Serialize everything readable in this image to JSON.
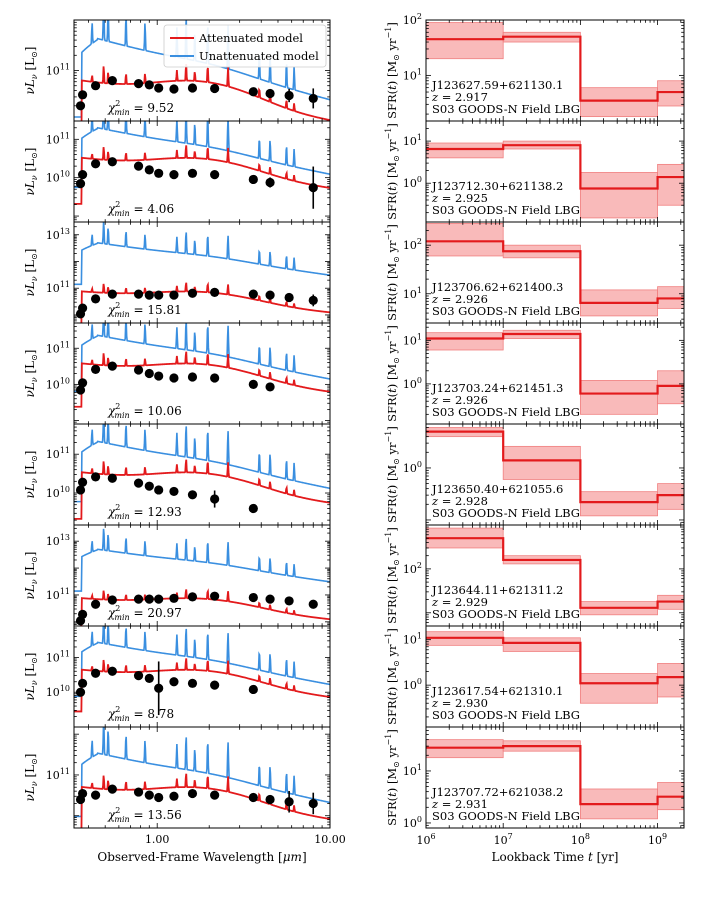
{
  "figure": {
    "left_x_label_pre": "Observed-Frame Wavelength [",
    "left_x_label_unit": "μm",
    "left_x_label_post": "]",
    "right_x_label_pre": "Lookback Time ",
    "right_x_label_var": "t",
    "right_x_label_post": " [yr]"
  },
  "left_axis": {
    "xlim": [
      0.33,
      10.0
    ],
    "xscale": "log",
    "xticks": [
      {
        "v": 1.0,
        "label": "1.00"
      },
      {
        "v": 10.0,
        "label": "10.00"
      }
    ],
    "ylabel_pre": "ν",
    "ylabel_var": "L",
    "ylabel_sub": "ν",
    "ylabel_unit": " [L",
    "ylabel_unit_sub": "⊙",
    "ylabel_end": "]",
    "chi_label_pre": "χ",
    "chi_sup": "2",
    "chi_sub": "min",
    "chi_eq": " = "
  },
  "right_axis": {
    "xlim": [
      1000000.0,
      2200000000.0
    ],
    "xscale": "log",
    "xticks": [
      {
        "v": 1000000.0,
        "exp": "6"
      },
      {
        "v": 10000000.0,
        "exp": "7"
      },
      {
        "v": 100000000.0,
        "exp": "8"
      },
      {
        "v": 1000000000.0,
        "exp": "9"
      }
    ],
    "tick_base": "10",
    "ylabel_pre": "SFR(",
    "ylabel_var": "t",
    "ylabel_mid": ") [M",
    "ylabel_sub": "⊙",
    "ylabel_unit": " yr",
    "ylabel_sup": "−1",
    "ylabel_end": "]",
    "bin_edges": [
      1000000.0,
      10000000.0,
      100000000.0,
      1000000000.0,
      2200000000.0
    ]
  },
  "legend": {
    "attenuated": "Attenuated model",
    "unattenuated": "Unattenuated model"
  },
  "colors": {
    "attenuated": "#e31a1c",
    "unattenuated": "#3a8fe0",
    "band_fill": "#f7a3a3",
    "band_edge": "#f08080",
    "points": "#000000"
  },
  "chart_data": [
    {
      "type": "line",
      "title": "J123627.59+621130.1",
      "chi2": "9.52",
      "sed_ylim": [
        10000000000.0,
        1000000000000.0
      ],
      "sed_yticks": [
        {
          "v": 100000000000.0,
          "exp": "11"
        }
      ],
      "atten_amp": 50000000000.0,
      "unatten_amp": 300000000000.0,
      "phot": [
        [
          0.36,
          20000000000.0,
          0.0
        ],
        [
          0.37,
          33000000000.0,
          0.0
        ],
        [
          0.44,
          50000000000.0,
          0.0
        ],
        [
          0.55,
          63000000000.0,
          0.0
        ],
        [
          0.78,
          55000000000.0,
          0.0
        ],
        [
          0.9,
          52000000000.0,
          0.0
        ],
        [
          1.02,
          45000000000.0,
          0.0
        ],
        [
          1.25,
          43000000000.0,
          0.0
        ],
        [
          1.6,
          45000000000.0,
          0.0
        ],
        [
          2.15,
          44000000000.0,
          0.0
        ],
        [
          3.6,
          38000000000.0,
          0.0
        ],
        [
          4.5,
          35000000000.0,
          0.0
        ],
        [
          5.8,
          32000000000.0,
          0.06
        ],
        [
          8.0,
          28000000000.0,
          0.09
        ]
      ],
      "name": "J123627.59+621130.1",
      "z_label": "z",
      "z_eq": " = ",
      "z": "2.917",
      "field": "S03 GOODS-N Field LBG",
      "sfr_ylim": [
        1.5,
        100
      ],
      "sfr_yticks": [
        {
          "v": 10,
          "exp": "1"
        },
        {
          "v": 100,
          "exp": "2"
        }
      ],
      "sfr": [
        45,
        50,
        3.5,
        5.0
      ],
      "sfr_lo": [
        20,
        40,
        1.8,
        2.8
      ],
      "sfr_hi": [
        90,
        60,
        6.0,
        8.0
      ]
    },
    {
      "type": "line",
      "title": "J123712.30+621138.2",
      "chi2": "4.06",
      "sed_ylim": [
        700000000.0,
        300000000000.0
      ],
      "sed_yticks": [
        {
          "v": 10000000000.0,
          "exp": "10"
        },
        {
          "v": 100000000000.0,
          "exp": "11"
        }
      ],
      "atten_amp": 26000000000.0,
      "unatten_amp": 140000000000.0,
      "phot": [
        [
          0.36,
          7000000000.0,
          0.0
        ],
        [
          0.37,
          12000000000.0,
          0.0
        ],
        [
          0.44,
          23000000000.0,
          0.0
        ],
        [
          0.55,
          26000000000.0,
          0.0
        ],
        [
          0.78,
          20000000000.0,
          0.0
        ],
        [
          0.9,
          16000000000.0,
          0.0
        ],
        [
          1.02,
          13000000000.0,
          0.0
        ],
        [
          1.25,
          12000000000.0,
          0.0
        ],
        [
          1.6,
          13000000000.0,
          0.0
        ],
        [
          2.15,
          12000000000.0,
          0.0
        ],
        [
          3.6,
          9000000000.0,
          0.0
        ],
        [
          4.5,
          7500000000.0,
          0.06
        ],
        [
          8.0,
          5500000000.0,
          0.25
        ]
      ],
      "name": "J123712.30+621138.2",
      "z_label": "z",
      "z_eq": " = ",
      "z": "2.925",
      "field": "S03 GOODS-N Field LBG",
      "sfr_ylim": [
        0.12,
        30
      ],
      "sfr_yticks": [
        {
          "v": 1,
          "exp": "0"
        },
        {
          "v": 10,
          "exp": "1"
        }
      ],
      "sfr": [
        6.5,
        8.0,
        0.75,
        1.4
      ],
      "sfr_lo": [
        4.0,
        6.5,
        0.15,
        0.3
      ],
      "sfr_hi": [
        9.0,
        10.0,
        1.8,
        2.8
      ]
    },
    {
      "type": "line",
      "title": "J123706.62+621400.3",
      "chi2": "15.81",
      "sed_ylim": [
        5000000000.0,
        30000000000000.0
      ],
      "sed_yticks": [
        {
          "v": 100000000000.0,
          "exp": "11"
        },
        {
          "v": 10000000000000.0,
          "exp": "13"
        }
      ],
      "atten_amp": 60000000000.0,
      "unatten_amp": 3500000000000.0,
      "phot": [
        [
          0.36,
          11000000000.0,
          0.0
        ],
        [
          0.37,
          18000000000.0,
          0.0
        ],
        [
          0.44,
          40000000000.0,
          0.0
        ],
        [
          0.55,
          60000000000.0,
          0.0
        ],
        [
          0.78,
          60000000000.0,
          0.0
        ],
        [
          0.9,
          55000000000.0,
          0.0
        ],
        [
          1.02,
          55000000000.0,
          0.0
        ],
        [
          1.25,
          55000000000.0,
          0.0
        ],
        [
          1.6,
          65000000000.0,
          0.0
        ],
        [
          2.15,
          70000000000.0,
          0.0
        ],
        [
          3.6,
          60000000000.0,
          0.0
        ],
        [
          4.5,
          55000000000.0,
          0.0
        ],
        [
          5.8,
          45000000000.0,
          0.0
        ],
        [
          8.0,
          35000000000.0,
          0.1
        ]
      ],
      "name": "J123706.62+621400.3",
      "z_label": "z",
      "z_eq": " = ",
      "z": "2.926",
      "field": "S03 GOODS-N Field LBG",
      "sfr_ylim": [
        2.5,
        300
      ],
      "sfr_yticks": [
        {
          "v": 10,
          "exp": "1"
        },
        {
          "v": 100,
          "exp": "2"
        }
      ],
      "sfr": [
        120,
        75,
        6.5,
        8.0
      ],
      "sfr_lo": [
        60,
        55,
        3.5,
        5.0
      ],
      "sfr_hi": [
        280,
        100,
        12,
        14
      ]
    },
    {
      "type": "line",
      "title": "J123703.24+621451.3",
      "chi2": "10.06",
      "sed_ylim": [
        800000000.0,
        500000000000.0
      ],
      "sed_yticks": [
        {
          "v": 10000000000.0,
          "exp": "10"
        },
        {
          "v": 100000000000.0,
          "exp": "11"
        }
      ],
      "atten_amp": 30000000000.0,
      "unatten_amp": 160000000000.0,
      "phot": [
        [
          0.36,
          7000000000.0,
          0.0
        ],
        [
          0.37,
          11000000000.0,
          0.0
        ],
        [
          0.44,
          26000000000.0,
          0.0
        ],
        [
          0.55,
          32000000000.0,
          0.0
        ],
        [
          0.78,
          25000000000.0,
          0.0
        ],
        [
          0.9,
          20000000000.0,
          0.0
        ],
        [
          1.02,
          17000000000.0,
          0.0
        ],
        [
          1.25,
          15000000000.0,
          0.0
        ],
        [
          1.6,
          16000000000.0,
          0.0
        ],
        [
          2.15,
          15000000000.0,
          0.0
        ],
        [
          3.6,
          10000000000.0,
          0.0
        ],
        [
          4.5,
          8500000000.0,
          0.0
        ]
      ],
      "name": "J123703.24+621451.3",
      "z_label": "z",
      "z_eq": " = ",
      "z": "2.926",
      "field": "S03 GOODS-N Field LBG",
      "sfr_ylim": [
        0.12,
        25
      ],
      "sfr_yticks": [
        {
          "v": 1,
          "exp": "0"
        },
        {
          "v": 10,
          "exp": "1"
        }
      ],
      "sfr": [
        11,
        14,
        0.6,
        0.9
      ],
      "sfr_lo": [
        6.0,
        11.0,
        0.2,
        0.35
      ],
      "sfr_hi": [
        15,
        17,
        1.2,
        2.0
      ]
    },
    {
      "type": "line",
      "title": "J123650.40+621055.6",
      "chi2": "12.93",
      "sed_ylim": [
        1500000000.0,
        600000000000.0
      ],
      "sed_yticks": [
        {
          "v": 10000000000.0,
          "exp": "10"
        },
        {
          "v": 100000000000.0,
          "exp": "11"
        }
      ],
      "atten_amp": 27000000000.0,
      "unatten_amp": 150000000000.0,
      "phot": [
        [
          0.36,
          12000000000.0,
          0.0
        ],
        [
          0.37,
          19000000000.0,
          0.0
        ],
        [
          0.44,
          26000000000.0,
          0.0
        ],
        [
          0.55,
          24000000000.0,
          0.0
        ],
        [
          0.78,
          18000000000.0,
          0.0
        ],
        [
          0.9,
          15000000000.0,
          0.0
        ],
        [
          1.02,
          12000000000.0,
          0.0
        ],
        [
          1.25,
          11000000000.0,
          0.0
        ],
        [
          1.6,
          9000000000.0,
          0.0
        ],
        [
          2.15,
          7000000000.0,
          0.1
        ],
        [
          3.6,
          4000000000.0,
          0.0
        ]
      ],
      "name": "J123650.40+621055.6",
      "z_label": "z",
      "z_eq": " = ",
      "z": "2.928",
      "field": "S03 GOODS-N Field LBG",
      "sfr_ylim": [
        0.08,
        7
      ],
      "sfr_yticks": [
        {
          "v": 1,
          "exp": "0"
        }
      ],
      "sfr": [
        5.0,
        1.4,
        0.22,
        0.3
      ],
      "sfr_lo": [
        4.0,
        0.6,
        0.12,
        0.16
      ],
      "sfr_hi": [
        6.0,
        2.6,
        0.35,
        0.5
      ]
    },
    {
      "type": "line",
      "title": "J123644.11+621311.2",
      "chi2": "20.97",
      "sed_ylim": [
        7000000000.0,
        40000000000000.0
      ],
      "sed_yticks": [
        {
          "v": 100000000000.0,
          "exp": "11"
        },
        {
          "v": 10000000000000.0,
          "exp": "13"
        }
      ],
      "atten_amp": 60000000000.0,
      "unatten_amp": 3500000000000.0,
      "phot": [
        [
          0.36,
          11000000000.0,
          0.0
        ],
        [
          0.37,
          19000000000.0,
          0.0
        ],
        [
          0.44,
          45000000000.0,
          0.0
        ],
        [
          0.55,
          65000000000.0,
          0.0
        ],
        [
          0.78,
          70000000000.0,
          0.0
        ],
        [
          0.9,
          70000000000.0,
          0.0
        ],
        [
          1.02,
          70000000000.0,
          0.0
        ],
        [
          1.25,
          75000000000.0,
          0.0
        ],
        [
          1.6,
          85000000000.0,
          0.0
        ],
        [
          2.15,
          90000000000.0,
          0.0
        ],
        [
          3.6,
          80000000000.0,
          0.0
        ],
        [
          4.5,
          70000000000.0,
          0.0
        ],
        [
          5.8,
          60000000000.0,
          0.0
        ],
        [
          8.0,
          45000000000.0,
          0.0
        ]
      ],
      "name": "J123644.11+621311.2",
      "z_label": "z",
      "z_eq": " = ",
      "z": "2.929",
      "field": "S03 GOODS-N Field LBG",
      "sfr_ylim": [
        5,
        1000
      ],
      "sfr_yticks": [
        {
          "v": 100,
          "exp": "2"
        }
      ],
      "sfr": [
        500,
        160,
        13,
        18
      ],
      "sfr_lo": [
        300,
        130,
        9,
        12
      ],
      "sfr_hi": [
        850,
        200,
        18,
        25
      ]
    },
    {
      "type": "line",
      "title": "J123617.54+621310.1",
      "chi2": "8.78",
      "sed_ylim": [
        1000000000.0,
        800000000000.0
      ],
      "sed_yticks": [
        {
          "v": 10000000000.0,
          "exp": "10"
        },
        {
          "v": 100000000000.0,
          "exp": "11"
        }
      ],
      "atten_amp": 35000000000.0,
      "unatten_amp": 190000000000.0,
      "phot": [
        [
          0.36,
          10000000000.0,
          0.0
        ],
        [
          0.37,
          18000000000.0,
          0.0
        ],
        [
          0.44,
          35000000000.0,
          0.0
        ],
        [
          0.55,
          40000000000.0,
          0.0
        ],
        [
          0.78,
          30000000000.0,
          0.0
        ],
        [
          0.9,
          25000000000.0,
          0.0
        ],
        [
          1.02,
          13000000000.0,
          0.35
        ],
        [
          1.25,
          20000000000.0,
          0.0
        ],
        [
          1.6,
          18000000000.0,
          0.0
        ],
        [
          2.15,
          16000000000.0,
          0.0
        ],
        [
          3.6,
          12000000000.0,
          0.0
        ]
      ],
      "name": "J123617.54+621310.1",
      "z_label": "z",
      "z_eq": " = ",
      "z": "2.930",
      "field": "S03 GOODS-N Field LBG",
      "sfr_ylim": [
        0.12,
        20
      ],
      "sfr_yticks": [
        {
          "v": 1,
          "exp": "0"
        },
        {
          "v": 10,
          "exp": "1"
        }
      ],
      "sfr": [
        11,
        8.5,
        1.1,
        1.5
      ],
      "sfr_lo": [
        7.5,
        5.5,
        0.4,
        0.55
      ],
      "sfr_hi": [
        15,
        11,
        1.8,
        3.0
      ]
    },
    {
      "type": "line",
      "title": "J123707.72+621038.2",
      "chi2": "13.56",
      "sed_ylim": [
        5000000000.0,
        1500000000000.0
      ],
      "sed_yticks": [
        {
          "v": 100000000000.0,
          "exp": "11"
        }
      ],
      "atten_amp": 40000000000.0,
      "unatten_amp": 240000000000.0,
      "phot": [
        [
          0.36,
          25000000000.0,
          0.0
        ],
        [
          0.37,
          35000000000.0,
          0.0
        ],
        [
          0.44,
          32000000000.0,
          0.0
        ],
        [
          0.55,
          45000000000.0,
          0.0
        ],
        [
          0.78,
          38000000000.0,
          0.0
        ],
        [
          0.9,
          32000000000.0,
          0.0
        ],
        [
          1.02,
          28000000000.0,
          0.0
        ],
        [
          1.25,
          30000000000.0,
          0.0
        ],
        [
          1.6,
          35000000000.0,
          0.0
        ],
        [
          2.15,
          32000000000.0,
          0.0
        ],
        [
          3.6,
          28000000000.0,
          0.0
        ],
        [
          4.5,
          25000000000.0,
          0.0
        ],
        [
          5.8,
          22000000000.0,
          0.12
        ],
        [
          8.0,
          20000000000.0,
          0.12
        ]
      ],
      "name": "J123707.72+621038.2",
      "z_label": "z",
      "z_eq": " = ",
      "z": "2.931",
      "field": "S03 GOODS-N Field LBG",
      "sfr_ylim": [
        0.8,
        70
      ],
      "sfr_yticks": [
        {
          "v": 1,
          "exp": "0"
        },
        {
          "v": 10,
          "exp": "1"
        }
      ],
      "sfr": [
        28,
        30,
        2.3,
        3.2
      ],
      "sfr_lo": [
        18,
        24,
        1.2,
        1.8
      ],
      "sfr_hi": [
        40,
        38,
        4.5,
        6.0
      ]
    }
  ]
}
